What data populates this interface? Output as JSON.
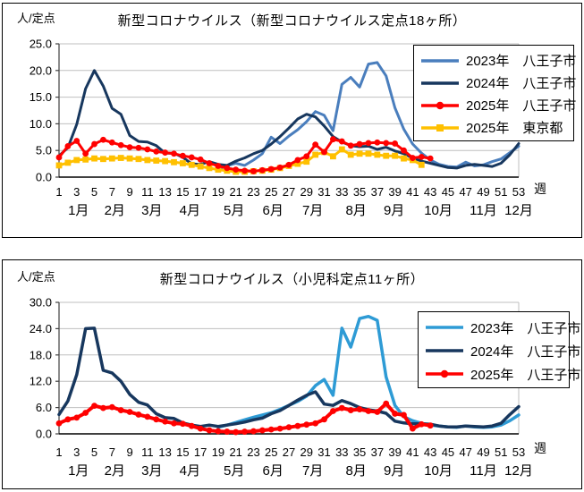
{
  "chart_data": [
    {
      "type": "line",
      "title": "新型コロナウイルス（新型コロナウイルス定点18ヶ所）",
      "y_unit": "人/定点",
      "x_unit": "週",
      "grid": true,
      "legend_position": "top-right",
      "y_axis": {
        "min": 0,
        "max": 25,
        "tick_labels": [
          "0.0",
          "5.0",
          "10.0",
          "15.0",
          "20.0",
          "25.0"
        ]
      },
      "x_axis": {
        "week_min": 1,
        "week_max": 53,
        "week_ticks": [
          1,
          3,
          5,
          7,
          9,
          11,
          13,
          15,
          17,
          19,
          21,
          23,
          25,
          27,
          29,
          31,
          33,
          35,
          37,
          39,
          41,
          43,
          45,
          47,
          49,
          51,
          53
        ],
        "month_labels": [
          "1月",
          "2月",
          "3月",
          "4月",
          "5月",
          "6月",
          "7月",
          "8月",
          "9月",
          "10月",
          "11月",
          "12月"
        ],
        "month_center_weeks": [
          3.2,
          7.3,
          11.5,
          15.8,
          20.8,
          25.2,
          29.7,
          34.6,
          38.9,
          43.9,
          49.0,
          53.0
        ]
      },
      "series": [
        {
          "name": "2023年　八王子市",
          "color": "#4A7EBD",
          "marker": "none",
          "line_width": 3,
          "start_week": 19,
          "values": [
            1.5,
            2.1,
            2.6,
            2.2,
            3.2,
            4.4,
            7.5,
            6.3,
            7.7,
            8.9,
            10.4,
            12.3,
            11.6,
            8.7,
            17.4,
            18.7,
            16.9,
            21.2,
            21.5,
            19.0,
            13.0,
            9.0,
            6.2,
            4.5,
            3.2,
            2.4,
            2.0,
            1.9,
            2.8,
            2.1,
            2.3,
            2.9,
            3.4,
            4.6,
            5.8
          ]
        },
        {
          "name": "2024年　八王子市",
          "color": "#17375E",
          "marker": "none",
          "line_width": 3,
          "start_week": 1,
          "values": [
            4.0,
            5.5,
            9.9,
            16.6,
            20.0,
            17.1,
            12.9,
            11.8,
            7.8,
            6.7,
            6.6,
            5.9,
            4.5,
            4.5,
            3.7,
            2.5,
            2.4,
            2.9,
            2.4,
            2.2,
            3.0,
            3.6,
            4.4,
            5.0,
            6.2,
            7.6,
            9.2,
            10.9,
            11.8,
            11.3,
            9.6,
            7.6,
            6.6,
            5.9,
            5.7,
            5.8,
            5.2,
            5.6,
            4.9,
            4.4,
            3.6,
            3.0,
            2.6,
            2.2,
            1.8,
            1.7,
            2.2,
            2.4,
            2.2,
            2.0,
            2.6,
            4.2,
            6.3
          ]
        },
        {
          "name": "2025年　八王子市",
          "color": "#FF0000",
          "marker": "circle",
          "line_width": 3,
          "start_week": 1,
          "values": [
            3.7,
            5.8,
            6.8,
            4.4,
            6.2,
            7.0,
            6.5,
            6.0,
            5.6,
            5.5,
            5.2,
            4.8,
            4.6,
            4.4,
            4.0,
            3.7,
            3.3,
            2.6,
            2.1,
            1.7,
            1.4,
            1.2,
            1.1,
            1.3,
            1.5,
            1.8,
            2.3,
            3.2,
            3.9,
            6.1,
            4.7,
            7.1,
            6.7,
            5.9,
            6.2,
            6.4,
            6.5,
            6.4,
            6.3,
            5.0,
            3.6,
            3.8,
            3.5
          ]
        },
        {
          "name": "2025年　東京都",
          "color": "#FFC000",
          "marker": "square",
          "line_width": 3,
          "start_week": 1,
          "values": [
            2.2,
            2.7,
            3.2,
            3.3,
            3.5,
            3.4,
            3.5,
            3.6,
            3.5,
            3.4,
            3.2,
            3.1,
            3.0,
            2.8,
            2.6,
            2.3,
            2.0,
            1.7,
            1.4,
            1.2,
            1.0,
            1.0,
            1.1,
            1.2,
            1.4,
            1.7,
            2.1,
            2.5,
            2.9,
            4.2,
            4.7,
            3.9,
            5.2,
            4.2,
            4.4,
            4.4,
            4.2,
            4.0,
            4.0,
            3.5,
            3.2,
            2.3
          ]
        }
      ]
    },
    {
      "type": "line",
      "title": "新型コロナウイルス（小児科定点11ヶ所）",
      "y_unit": "人/定点",
      "x_unit": "週",
      "grid": true,
      "legend_position": "top-right",
      "y_axis": {
        "min": 0,
        "max": 30,
        "tick_labels": [
          "0.0",
          "6.0",
          "12.0",
          "18.0",
          "24.0",
          "30.0"
        ]
      },
      "x_axis": {
        "week_min": 1,
        "week_max": 53,
        "week_ticks": [
          1,
          3,
          5,
          7,
          9,
          11,
          13,
          15,
          17,
          19,
          21,
          23,
          25,
          27,
          29,
          31,
          33,
          35,
          37,
          39,
          41,
          43,
          45,
          47,
          49,
          51,
          53
        ],
        "month_labels": [
          "1月",
          "2月",
          "3月",
          "4月",
          "5月",
          "6月",
          "7月",
          "8月",
          "9月",
          "10月",
          "11月",
          "12月"
        ],
        "month_center_weeks": [
          3.2,
          7.3,
          11.5,
          15.8,
          20.8,
          25.2,
          29.7,
          34.6,
          38.9,
          43.9,
          49.0,
          53.0
        ]
      },
      "series": [
        {
          "name": "2023年　八王子市",
          "color": "#2E9BD5",
          "marker": "none",
          "line_width": 3.5,
          "start_week": 19,
          "values": [
            1.5,
            2.0,
            2.6,
            3.2,
            3.8,
            4.3,
            4.8,
            5.6,
            6.5,
            7.4,
            8.6,
            11.0,
            12.4,
            8.8,
            24.1,
            19.8,
            26.3,
            26.8,
            25.9,
            13.0,
            6.5,
            3.9,
            3.0,
            2.4,
            2.0,
            1.8,
            1.6,
            1.5,
            1.8,
            1.6,
            1.5,
            1.6,
            2.0,
            3.0,
            4.3
          ]
        },
        {
          "name": "2024年　八王子市",
          "color": "#17375E",
          "marker": "none",
          "line_width": 3.5,
          "start_week": 1,
          "values": [
            4.4,
            7.5,
            13.5,
            24.0,
            24.1,
            14.5,
            13.9,
            12.0,
            9.0,
            7.2,
            6.6,
            4.6,
            3.7,
            3.5,
            2.5,
            2.0,
            1.7,
            2.0,
            1.7,
            2.0,
            2.3,
            2.7,
            3.2,
            3.6,
            4.6,
            5.3,
            6.5,
            7.7,
            8.8,
            9.6,
            6.8,
            6.5,
            7.6,
            6.9,
            6.0,
            5.5,
            5.2,
            4.7,
            2.9,
            2.5,
            2.3,
            2.3,
            2.2,
            1.8,
            1.6,
            1.6,
            1.8,
            1.7,
            1.6,
            1.8,
            2.4,
            4.4,
            6.2
          ]
        },
        {
          "name": "2025年　八王子市",
          "color": "#FF0000",
          "marker": "circle",
          "line_width": 4,
          "start_week": 1,
          "values": [
            2.4,
            3.3,
            3.7,
            4.8,
            6.4,
            5.9,
            6.1,
            5.4,
            5.0,
            4.4,
            3.9,
            3.3,
            2.8,
            2.4,
            2.3,
            1.8,
            1.2,
            0.8,
            0.6,
            0.5,
            0.4,
            0.5,
            0.6,
            0.8,
            1.0,
            1.2,
            1.5,
            1.8,
            2.1,
            2.4,
            3.3,
            5.2,
            5.9,
            5.4,
            5.6,
            5.2,
            5.0,
            6.9,
            4.6,
            4.3,
            1.2,
            2.2,
            1.9
          ]
        }
      ]
    }
  ]
}
